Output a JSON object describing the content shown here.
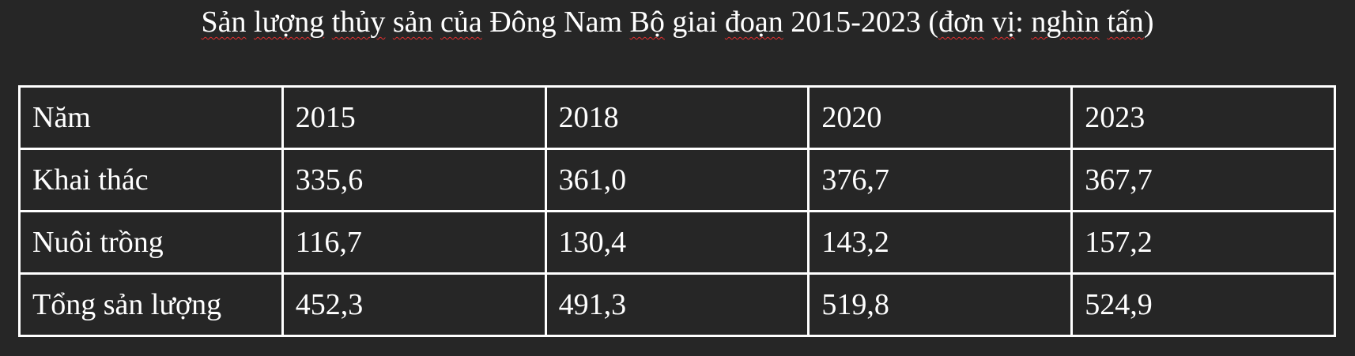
{
  "title": {
    "parts": [
      "Sản",
      " ",
      "lượng",
      " ",
      "thủy",
      " ",
      "sản",
      " ",
      "của",
      " Đông Nam ",
      "Bộ",
      " giai ",
      "đoạn",
      " 2015-2023 (",
      "đơn",
      " ",
      "vị",
      ": ",
      "nghìn",
      " ",
      "tấn",
      ")"
    ]
  },
  "table": {
    "header": [
      "Năm",
      "2015",
      "2018",
      "2020",
      "2023"
    ],
    "rows": [
      [
        "Khai thác",
        "335,6",
        "361,0",
        "376,7",
        "367,7"
      ],
      [
        "Nuôi trồng",
        "116,7",
        "130,4",
        "143,2",
        "157,2"
      ],
      [
        "Tổng sản lượng",
        "452,3",
        "491,3",
        "519,8",
        "524,9"
      ]
    ]
  },
  "colors": {
    "background": "#262626",
    "text": "#ffffff",
    "grid": "#ffffff",
    "spellcheck_underline": "#e03030"
  }
}
